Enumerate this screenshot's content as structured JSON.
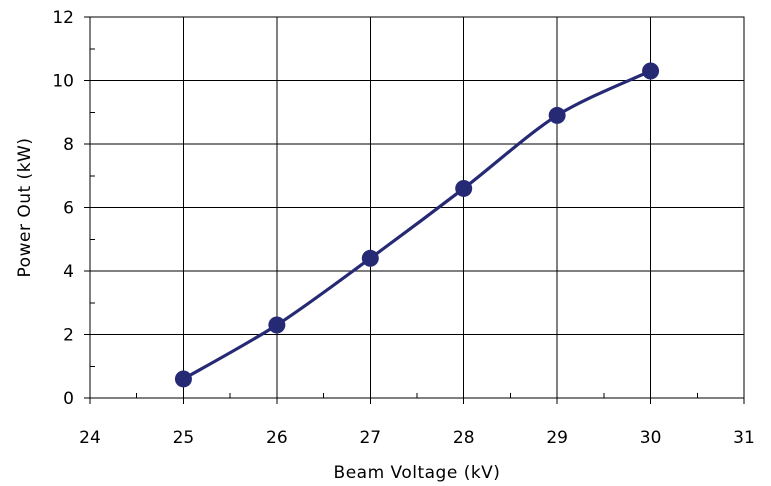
{
  "chart_data": {
    "type": "line",
    "title": "",
    "xlabel": "Beam Voltage (kV)",
    "ylabel": "Power Out (kW)",
    "xlim": [
      24,
      31
    ],
    "ylim": [
      0,
      12
    ],
    "x_ticks": [
      "24",
      "25",
      "26",
      "27",
      "28",
      "29",
      "30",
      "31"
    ],
    "y_ticks": [
      "0",
      "2",
      "4",
      "6",
      "8",
      "10",
      "12"
    ],
    "x_minor_step": 0.5,
    "y_minor_step": 1,
    "grid": true,
    "legend": "none",
    "series": [
      {
        "x": [
          25,
          26,
          27,
          28,
          29,
          30
        ],
        "y": [
          0.6,
          2.3,
          4.4,
          6.6,
          8.9,
          10.3
        ],
        "marker": "circle",
        "color": "#262a75"
      }
    ]
  }
}
